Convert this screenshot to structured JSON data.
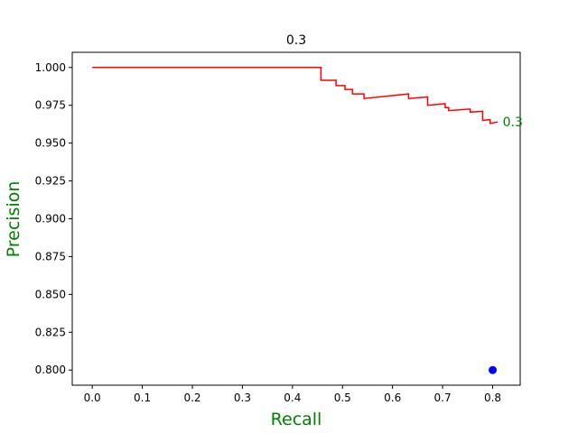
{
  "chart_data": {
    "type": "line",
    "title": "0.3",
    "xlabel": "Recall",
    "ylabel": "Precision",
    "xlim": [
      -0.04,
      0.855
    ],
    "ylim": [
      0.79,
      1.01
    ],
    "xticks": [
      0.0,
      0.1,
      0.2,
      0.3,
      0.4,
      0.5,
      0.6,
      0.7,
      0.8
    ],
    "xtick_labels": [
      "0.0",
      "0.1",
      "0.2",
      "0.3",
      "0.4",
      "0.5",
      "0.6",
      "0.7",
      "0.8"
    ],
    "yticks": [
      0.8,
      0.825,
      0.85,
      0.875,
      0.9,
      0.925,
      0.95,
      0.975,
      1.0
    ],
    "ytick_labels": [
      "0.800",
      "0.825",
      "0.850",
      "0.875",
      "0.900",
      "0.925",
      "0.950",
      "0.975",
      "1.000"
    ],
    "grid": false,
    "series": [
      {
        "color": "#ff0000",
        "x": [
          0.0,
          0.457,
          0.457,
          0.487,
          0.487,
          0.505,
          0.505,
          0.52,
          0.52,
          0.543,
          0.543,
          0.632,
          0.632,
          0.67,
          0.67,
          0.705,
          0.705,
          0.712,
          0.712,
          0.755,
          0.755,
          0.78,
          0.78,
          0.795,
          0.795,
          0.81
        ],
        "y": [
          1.0,
          1.0,
          0.9915,
          0.9915,
          0.988,
          0.988,
          0.9855,
          0.9855,
          0.9825,
          0.9825,
          0.9795,
          0.9825,
          0.9795,
          0.9805,
          0.975,
          0.976,
          0.9735,
          0.9735,
          0.9715,
          0.9725,
          0.9705,
          0.971,
          0.965,
          0.9655,
          0.963,
          0.964
        ]
      }
    ],
    "annotations": [
      {
        "text": "0.3",
        "x": 0.82,
        "y": 0.964,
        "color": "#008000"
      }
    ],
    "points": [
      {
        "x": 0.8,
        "y": 0.8,
        "color": "#0000ff"
      }
    ],
    "label_color": "#008000"
  }
}
